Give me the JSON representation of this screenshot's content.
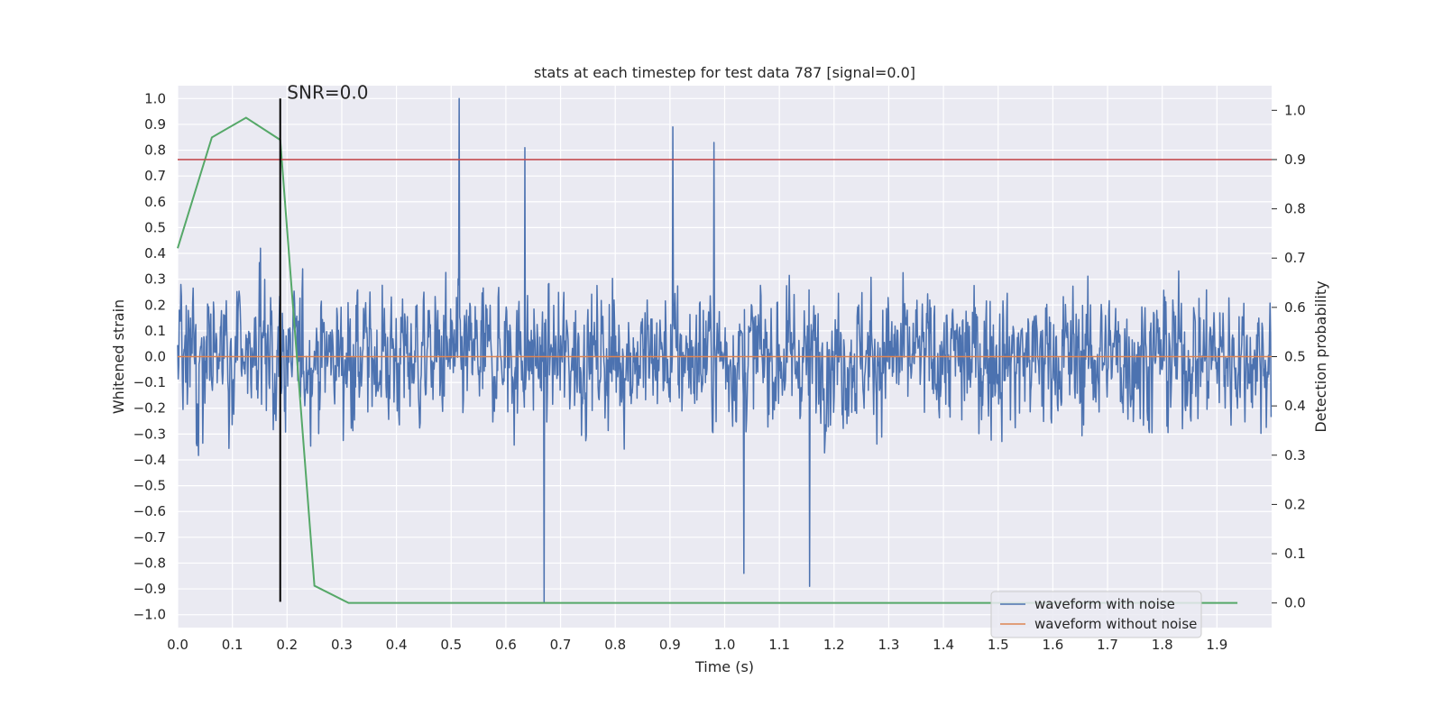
{
  "chart_data": {
    "type": "line",
    "title": "stats at each timestep for test data 787 [signal=0.0]",
    "xlabel": "Time (s)",
    "ylabel": "Whitened strain",
    "y2label": "Detection probability",
    "xlim": [
      0.0,
      2.0
    ],
    "ylim": [
      -1.05,
      1.05
    ],
    "y2lim": [
      -0.05,
      1.05
    ],
    "x_ticks": [
      "0.0",
      "0.1",
      "0.2",
      "0.3",
      "0.4",
      "0.5",
      "0.6",
      "0.7",
      "0.8",
      "0.9",
      "1.0",
      "1.1",
      "1.2",
      "1.3",
      "1.4",
      "1.5",
      "1.6",
      "1.7",
      "1.8",
      "1.9"
    ],
    "y_ticks": [
      "1.0",
      "0.9",
      "0.8",
      "0.7",
      "0.6",
      "0.5",
      "0.4",
      "0.3",
      "0.2",
      "0.1",
      "0.0",
      "-0.1",
      "-0.2",
      "-0.3",
      "-0.4",
      "-0.5",
      "-0.6",
      "-0.7",
      "-0.8",
      "-0.9",
      "-1.0"
    ],
    "y2_ticks": [
      "1.0",
      "0.9",
      "0.8",
      "0.7",
      "0.6",
      "0.5",
      "0.4",
      "0.3",
      "0.2",
      "0.1",
      "0.0"
    ],
    "grid": true,
    "legend_position": "lower-right",
    "series": [
      {
        "name": "waveform with noise",
        "color": "#4c72b0",
        "axis": "left",
        "kind": "noise",
        "sample_count": 2048,
        "approx_range": [
          -0.95,
          1.0
        ],
        "notable_peaks": [
          {
            "x": 0.515,
            "y": 1.0
          },
          {
            "x": 0.905,
            "y": 0.89
          },
          {
            "x": 0.98,
            "y": 0.83
          },
          {
            "x": 0.635,
            "y": 0.81
          },
          {
            "x": 0.67,
            "y": -0.95
          },
          {
            "x": 1.155,
            "y": -0.89
          },
          {
            "x": 1.035,
            "y": -0.84
          }
        ]
      },
      {
        "name": "waveform without noise",
        "color": "#dd8452",
        "axis": "left",
        "x": [
          0.0,
          2.0
        ],
        "y": [
          0.0,
          0.0
        ]
      },
      {
        "name": "",
        "color": "#55a868",
        "axis": "right",
        "x": [
          0.0,
          0.0625,
          0.125,
          0.1875,
          0.25,
          0.3125,
          0.375,
          0.4375,
          0.5,
          1.0,
          1.5,
          1.9375
        ],
        "y": [
          0.72,
          0.945,
          0.985,
          0.94,
          0.035,
          0.0,
          0.0,
          0.0,
          0.0,
          0.0,
          0.0,
          0.0
        ]
      }
    ],
    "reference_lines": [
      {
        "type": "horizontal",
        "axis": "right",
        "y": 0.9,
        "color": "#c44e52"
      },
      {
        "type": "vertical",
        "x": 0.1875,
        "y_from": -0.95,
        "y_to": 1.0,
        "color": "#000000"
      }
    ],
    "annotations": [
      {
        "text": "SNR=0.0",
        "x": 0.2,
        "y": 1.0
      }
    ],
    "colors": {
      "plot_background": "#eaeaf2",
      "grid": "#ffffff"
    }
  }
}
